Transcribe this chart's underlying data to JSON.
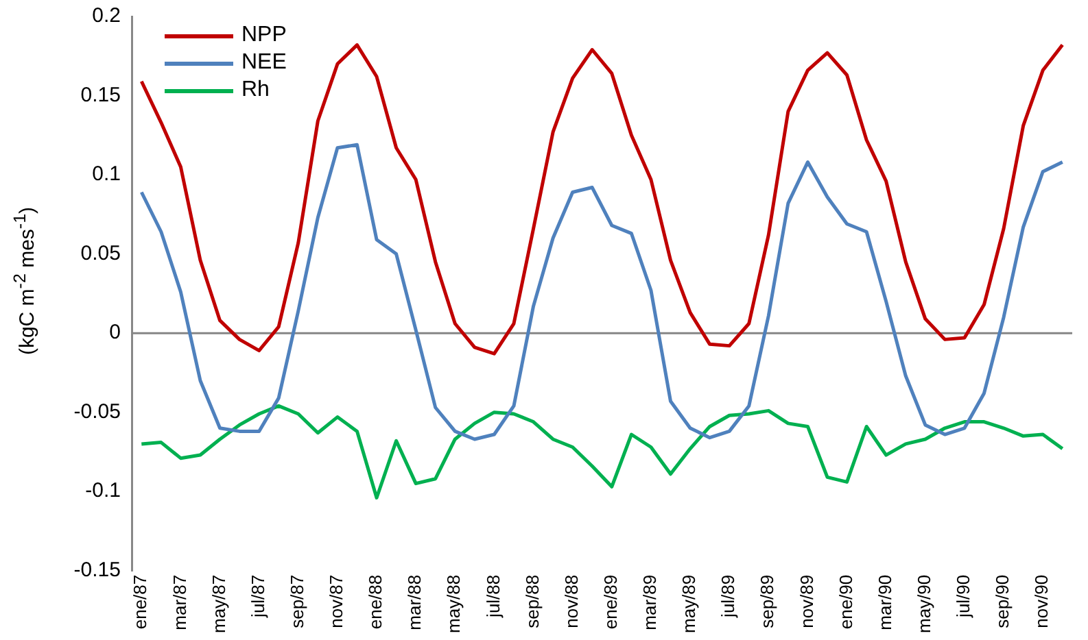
{
  "chart_data": {
    "type": "line",
    "ylabel": "(kgC m$^{-2}$ mes$^{-1}$)",
    "categories": [
      "ene/87",
      null,
      "mar/87",
      null,
      "may/87",
      null,
      "jul/87",
      null,
      "sep/87",
      null,
      "nov/87",
      null,
      "ene/88",
      null,
      "mar/88",
      null,
      "may/88",
      null,
      "jul/88",
      null,
      "sep/88",
      null,
      "nov/88",
      null,
      "ene/89",
      null,
      "mar/89",
      null,
      "may/89",
      null,
      "jul/89",
      null,
      "sep/89",
      null,
      "nov/89",
      null,
      "ene/90",
      null,
      "mar/90",
      null,
      "may/90",
      null,
      "jul/90",
      null,
      "sep/90",
      null,
      "nov/90",
      null
    ],
    "series": [
      {
        "name": "NPP",
        "color": "#c00000",
        "values": [
          0.159,
          0.133,
          0.105,
          0.046,
          0.008,
          -0.004,
          -0.011,
          0.004,
          0.057,
          0.134,
          0.17,
          0.182,
          0.162,
          0.117,
          0.097,
          0.045,
          0.006,
          -0.009,
          -0.013,
          0.006,
          0.066,
          0.127,
          0.161,
          0.179,
          0.164,
          0.125,
          0.097,
          0.046,
          0.013,
          -0.007,
          -0.008,
          0.006,
          0.062,
          0.14,
          0.166,
          0.177,
          0.163,
          0.122,
          0.096,
          0.045,
          0.009,
          -0.004,
          -0.003,
          0.018,
          0.066,
          0.131,
          0.166,
          0.182
        ]
      },
      {
        "name": "NEE",
        "color": "#4f81bd",
        "values": [
          0.089,
          0.064,
          0.026,
          -0.03,
          -0.06,
          -0.062,
          -0.062,
          -0.041,
          0.014,
          0.073,
          0.117,
          0.119,
          0.059,
          0.05,
          0.002,
          -0.047,
          -0.062,
          -0.067,
          -0.064,
          -0.046,
          0.017,
          0.06,
          0.089,
          0.092,
          0.068,
          0.063,
          0.027,
          -0.043,
          -0.06,
          -0.066,
          -0.062,
          -0.046,
          0.011,
          0.082,
          0.108,
          0.086,
          0.069,
          0.064,
          0.02,
          -0.027,
          -0.058,
          -0.064,
          -0.06,
          -0.038,
          0.01,
          0.067,
          0.102,
          0.108
        ]
      },
      {
        "name": "Rh",
        "color": "#00b050",
        "values": [
          -0.07,
          -0.069,
          -0.079,
          -0.077,
          -0.067,
          -0.058,
          -0.051,
          -0.046,
          -0.051,
          -0.063,
          -0.053,
          -0.062,
          -0.104,
          -0.068,
          -0.095,
          -0.092,
          -0.067,
          -0.057,
          -0.05,
          -0.051,
          -0.056,
          -0.067,
          -0.072,
          -0.084,
          -0.097,
          -0.064,
          -0.072,
          -0.089,
          -0.073,
          -0.059,
          -0.052,
          -0.051,
          -0.049,
          -0.057,
          -0.059,
          -0.091,
          -0.094,
          -0.059,
          -0.077,
          -0.07,
          -0.067,
          -0.06,
          -0.056,
          -0.056,
          -0.06,
          -0.065,
          -0.064,
          -0.073
        ]
      }
    ],
    "ylim": [
      -0.15,
      0.2
    ],
    "yticks": [
      -0.15,
      -0.1,
      -0.05,
      0,
      0.05,
      0.1,
      0.15,
      0.2
    ],
    "ref_lines": [
      {
        "axis": "y",
        "value": 0,
        "color": "#868686"
      }
    ],
    "grid": false,
    "legend": "top left",
    "marker": "none",
    "line_style": "solid"
  }
}
